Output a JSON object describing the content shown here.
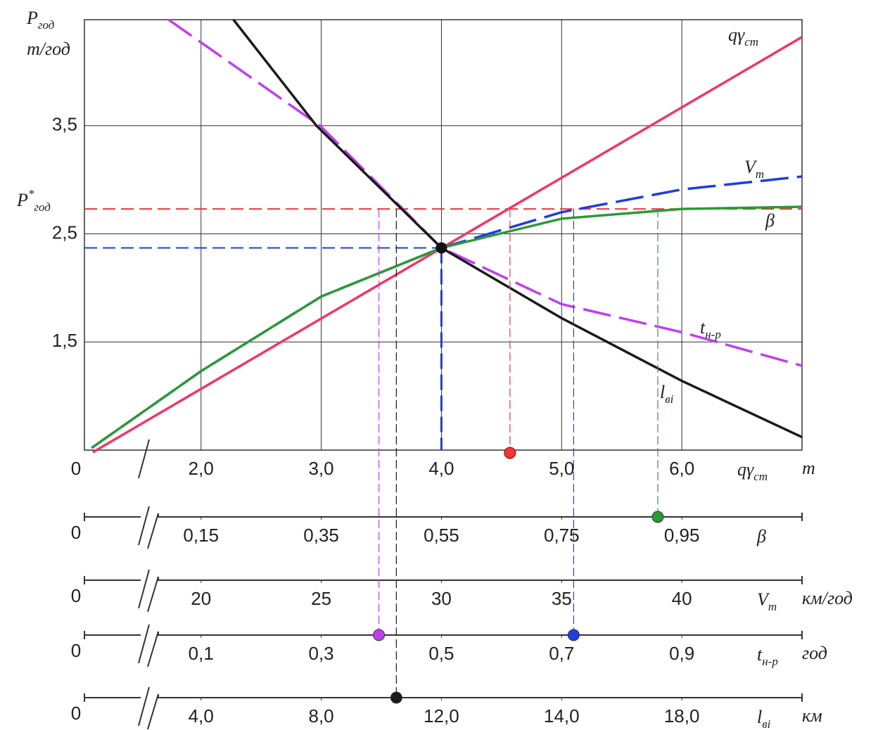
{
  "chart_data": {
    "type": "line",
    "y_label": "P",
    "y_label_sub": "год",
    "y_unit": "т/год",
    "x_label": "qγ",
    "x_label_sub": "ст",
    "x_unit": "т",
    "origin_label": "0",
    "xlim": [
      1.03,
      7.0
    ],
    "ylim": [
      0.5,
      4.48
    ],
    "xticks": [
      {
        "value": 2,
        "label": "2,0"
      },
      {
        "value": 3,
        "label": "3,0"
      },
      {
        "value": 4,
        "label": "4,0"
      },
      {
        "value": 5,
        "label": "5,0"
      },
      {
        "value": 6,
        "label": "6,0"
      }
    ],
    "yticks": [
      {
        "value": 1.5,
        "label": "1,5"
      },
      {
        "value": 2.5,
        "label": "2,5"
      },
      {
        "value": 3.5,
        "label": "3,5"
      }
    ],
    "grid": true,
    "series": [
      {
        "name": "qγ",
        "name_sub": "ст",
        "color": "#f0366a",
        "dash": false,
        "x": [
          1.1,
          7.0
        ],
        "values": [
          0.48,
          4.32
        ]
      },
      {
        "name": "V",
        "name_sub": "т",
        "color": "#1f3de0",
        "dash": true,
        "x": [
          1.09,
          2,
          3,
          4,
          5,
          6,
          7
        ],
        "values": [
          0.52,
          1.23,
          1.92,
          2.37,
          2.7,
          2.91,
          3.03
        ]
      },
      {
        "name": "β",
        "color": "#2b9a35",
        "dash": false,
        "x": [
          1.09,
          2,
          3,
          4,
          5,
          6,
          7
        ],
        "values": [
          0.52,
          1.23,
          1.92,
          2.37,
          2.64,
          2.73,
          2.75
        ]
      },
      {
        "name": "t",
        "name_sub": "н-р",
        "color": "#c03ef2",
        "dash": true,
        "x": [
          1.73,
          3,
          4,
          5,
          6,
          7
        ],
        "values": [
          4.48,
          3.49,
          2.37,
          1.85,
          1.59,
          1.28
        ]
      },
      {
        "name": "l",
        "name_sub": "ві",
        "color": "#1a1a1a",
        "dash": false,
        "x": [
          2.27,
          2.96,
          4,
          5,
          6,
          7
        ],
        "values": [
          4.48,
          3.5,
          2.37,
          1.72,
          1.14,
          0.62
        ]
      }
    ],
    "optimum": {
      "x": 4.0,
      "y": 2.37,
      "color": "#1f3de0"
    },
    "p_star": {
      "value": 2.73,
      "label": "P",
      "sup": "*",
      "sub": "год",
      "color": "#f0363a"
    },
    "x_markers": [
      {
        "value": 4.57,
        "color": "#f0363a"
      }
    ],
    "scales": [
      {
        "name": "β",
        "ticks": [
          {
            "value": 0.15,
            "label": "0,15"
          },
          {
            "value": 0.35,
            "label": "0,35"
          },
          {
            "value": 0.55,
            "label": "0,55"
          },
          {
            "value": 0.75,
            "label": "0,75"
          },
          {
            "value": 0.95,
            "label": "0,95"
          }
        ],
        "markers": [
          {
            "value": 0.91,
            "color": "#2b9a35"
          }
        ]
      },
      {
        "name": "V",
        "name_sub": "т",
        "unit": "км/год",
        "ticks": [
          20,
          25,
          30,
          35,
          40
        ],
        "markers": []
      },
      {
        "name": "t",
        "name_sub": "н-р",
        "unit": "год",
        "ticks": [
          {
            "value": 0.1,
            "label": "0,1"
          },
          {
            "value": 0.3,
            "label": "0,3"
          },
          {
            "value": 0.5,
            "label": "0,5"
          },
          {
            "value": 0.7,
            "label": "0,7"
          },
          {
            "value": 0.9,
            "label": "0,9"
          }
        ],
        "markers": [
          {
            "value": 0.396,
            "color": "#c03ef2"
          },
          {
            "value": 0.72,
            "color": "#1f3de0"
          }
        ]
      },
      {
        "name": "l",
        "name_sub": "ві",
        "unit": "км",
        "ticks": [
          {
            "value": 4,
            "label": "4,0"
          },
          {
            "value": 8,
            "label": "8,0"
          },
          {
            "value": 12,
            "label": "12,0"
          },
          {
            "value": 14,
            "label": "14,0"
          },
          {
            "value": 18,
            "label": "18,0"
          }
        ],
        "markers": [
          {
            "value": 10.5,
            "color": "#1a1a1a"
          }
        ]
      }
    ]
  }
}
